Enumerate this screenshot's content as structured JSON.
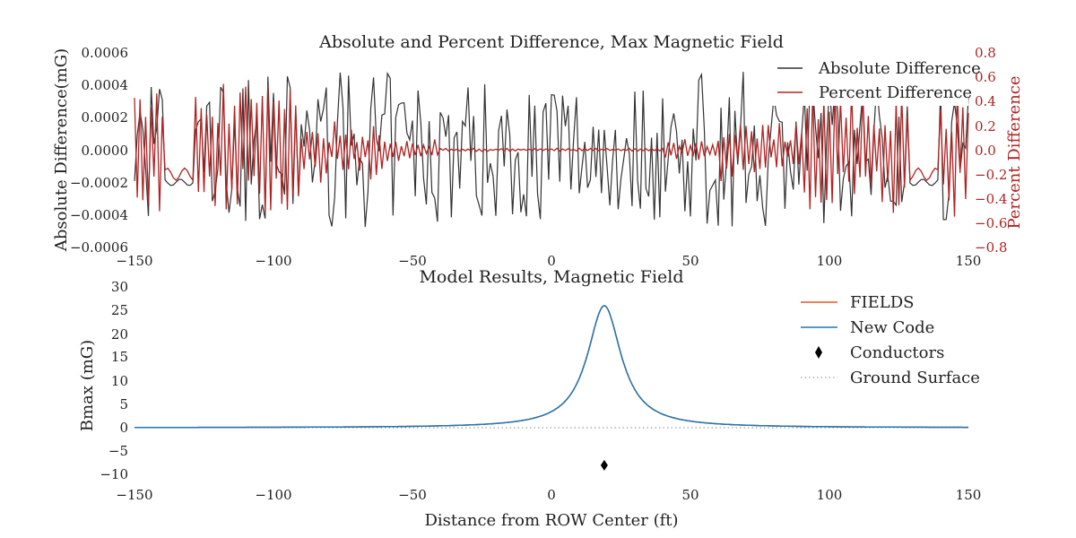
{
  "chart_data": [
    {
      "type": "line",
      "title": "Absolute and Percent Difference, Max Magnetic Field",
      "xlabel": "",
      "ylabel": "Absolute Difference(mG)",
      "ylabel_right": "Percent Difference",
      "xlim": [
        -150,
        150
      ],
      "ylim": [
        -0.0006,
        0.0006
      ],
      "ylim_right": [
        -0.8,
        0.8
      ],
      "x_ticks": [
        "−150",
        "−100",
        "−50",
        "0",
        "50",
        "100",
        "150"
      ],
      "y_ticks": [
        "−0.0006",
        "−0.0004",
        "−0.0002",
        "0.0000",
        "0.0002",
        "0.0004",
        "0.0006"
      ],
      "y_ticks_right": [
        "−0.8",
        "−0.6",
        "−0.4",
        "−0.2",
        "0.0",
        "0.2",
        "0.4",
        "0.6",
        "0.8"
      ],
      "grid": false,
      "legend_position": "top-right",
      "series": [
        {
          "name": "Absolute Difference",
          "axis": "left",
          "color": "#333333",
          "description": "noisy oscillation between about -0.0005 and 0.0005"
        },
        {
          "name": "Percent Difference",
          "axis": "right",
          "color": "#b22222",
          "description": "large oscillations near the edges (up to ±0.6), near zero around the center"
        }
      ]
    },
    {
      "type": "line",
      "title": "Model Results, Magnetic Field",
      "xlabel": "Distance from ROW Center (ft)",
      "ylabel": "Bmax (mG)",
      "xlim": [
        -150,
        150
      ],
      "ylim": [
        -12,
        30
      ],
      "x_ticks": [
        "−150",
        "−100",
        "−50",
        "0",
        "50",
        "100",
        "150"
      ],
      "y_ticks": [
        "−10",
        "−5",
        "0",
        "5",
        "10",
        "15",
        "20",
        "25",
        "30"
      ],
      "grid": false,
      "legend_position": "top-right",
      "peak": {
        "x": 19,
        "y": 26
      },
      "series": [
        {
          "name": "FIELDS",
          "color": "#e8562a"
        },
        {
          "name": "New Code",
          "color": "#1f77b4"
        },
        {
          "name": "Conductors",
          "color": "#000000",
          "points": [
            [
              19,
              -8
            ]
          ]
        },
        {
          "name": "Ground Surface",
          "color": "#888888",
          "y": 0
        }
      ]
    }
  ]
}
